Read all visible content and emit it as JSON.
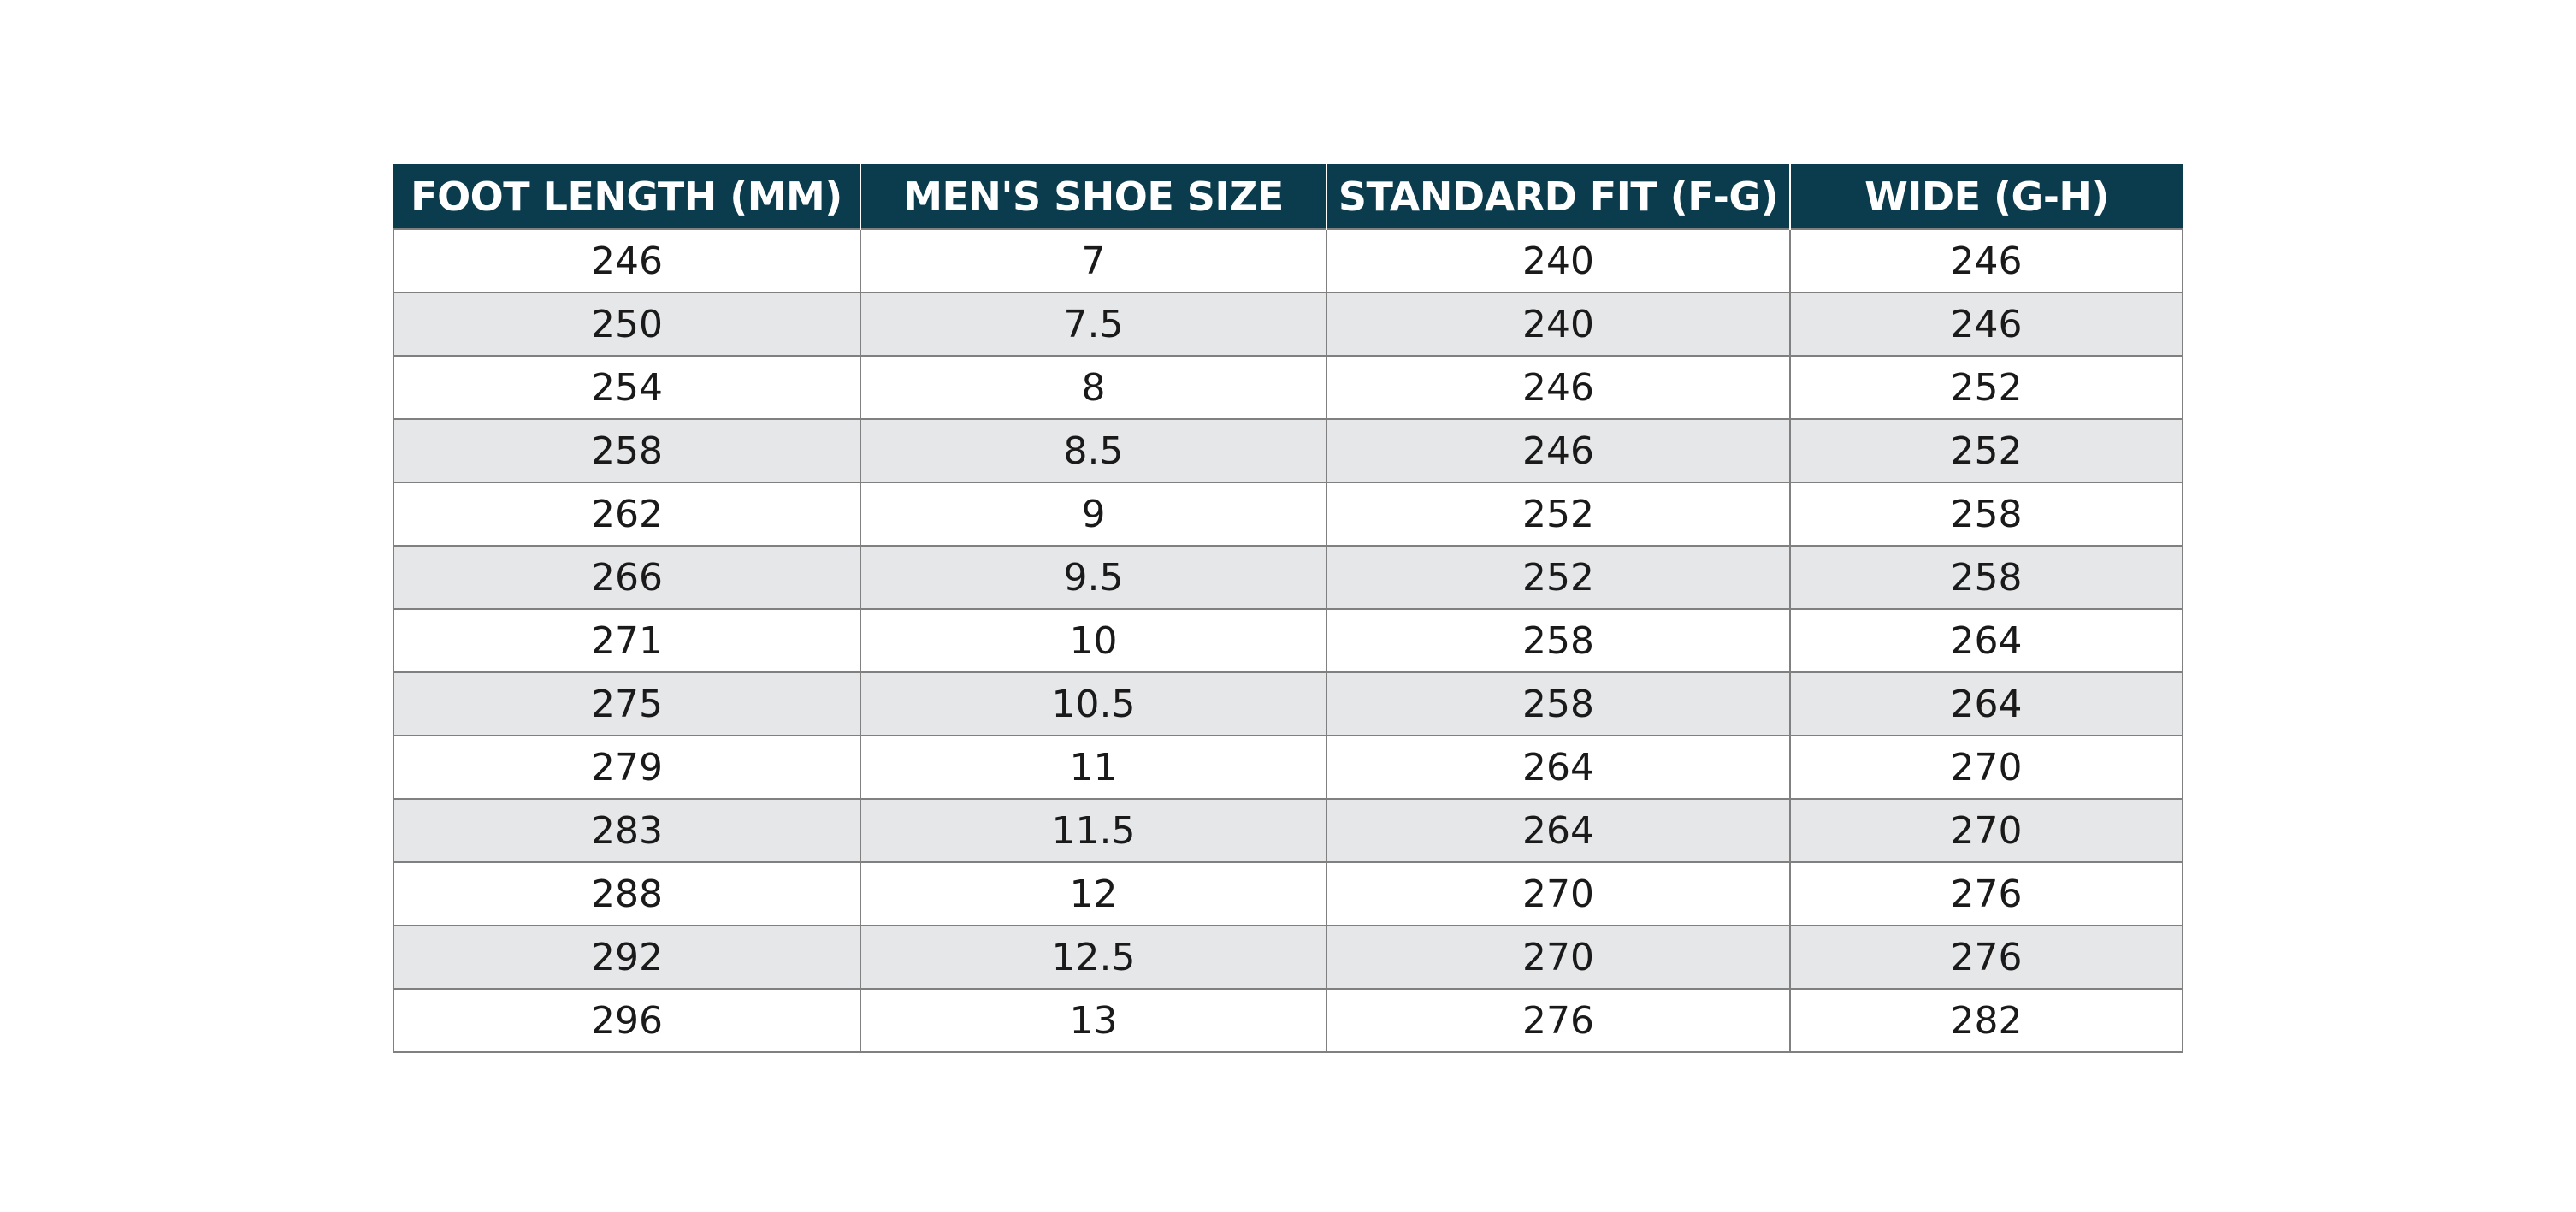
{
  "table": {
    "header": [
      "FOOT LENGTH (MM)",
      "MEN'S SHOE SIZE",
      "STANDARD FIT (F-G)",
      "WIDE (G-H)"
    ],
    "rows": [
      [
        "246",
        "7",
        "240",
        "246"
      ],
      [
        "250",
        "7.5",
        "240",
        "246"
      ],
      [
        "254",
        "8",
        "246",
        "252"
      ],
      [
        "258",
        "8.5",
        "246",
        "252"
      ],
      [
        "262",
        "9",
        "252",
        "258"
      ],
      [
        "266",
        "9.5",
        "252",
        "258"
      ],
      [
        "271",
        "10",
        "258",
        "264"
      ],
      [
        "275",
        "10.5",
        "258",
        "264"
      ],
      [
        "279",
        "11",
        "264",
        "270"
      ],
      [
        "283",
        "11.5",
        "264",
        "270"
      ],
      [
        "288",
        "12",
        "270",
        "276"
      ],
      [
        "292",
        "12.5",
        "270",
        "276"
      ],
      [
        "296",
        "13",
        "276",
        "282"
      ]
    ]
  }
}
